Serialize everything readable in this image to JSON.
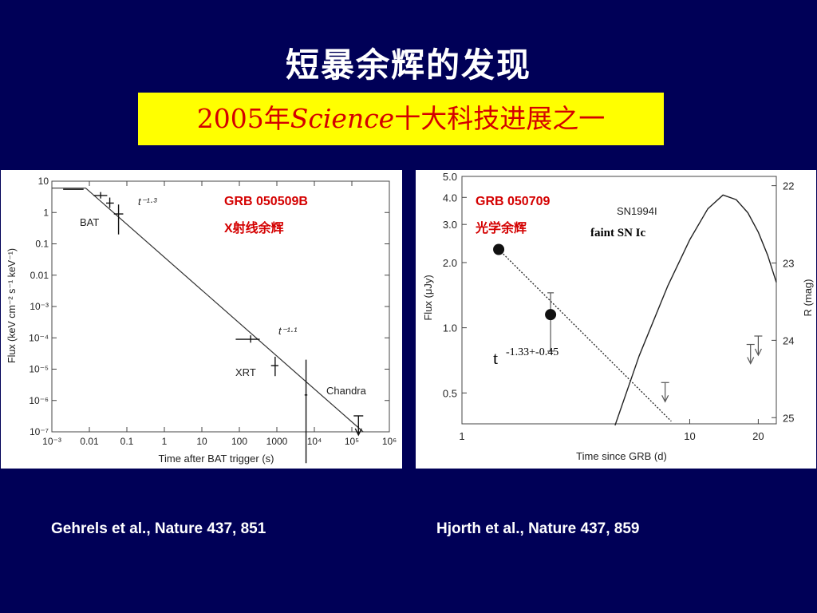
{
  "slide": {
    "title": "短暴余辉的发现",
    "subtitle_year": "2005年",
    "subtitle_journal": "Science",
    "subtitle_rest": "十大科技进展之一",
    "citation_left": "Gehrels et al., Nature 437, 851",
    "citation_right": "Hjorth et al., Nature 437, 859"
  },
  "colors": {
    "background": "#000057",
    "highlight": "#ffff00",
    "annotation_red": "#d40000"
  },
  "chart_data": [
    {
      "type": "line",
      "scale": "log-log",
      "xlabel": "Time after BAT trigger (s)",
      "ylabel": "Flux (keV cm⁻² s⁻¹ keV⁻¹)",
      "xlim": [
        0.001,
        1000000
      ],
      "ylim": [
        1e-07,
        10
      ],
      "x_ticks": [
        "10⁻³",
        "0.01",
        "0.1",
        "1",
        "10",
        "100",
        "1000",
        "10⁴",
        "10⁵",
        "10⁶"
      ],
      "y_ticks": [
        "10",
        "1",
        "0.1",
        "0.01",
        "10⁻³",
        "10⁻⁴",
        "10⁻⁵",
        "10⁻⁶",
        "10⁻⁷"
      ],
      "annotation_grb": "GRB 050509B",
      "annotation_xray": "X射线余辉",
      "labels": {
        "bat": "BAT",
        "xrt": "XRT",
        "chandra": "Chandra",
        "slope1": "t⁻¹·³",
        "slope2": "t⁻¹·¹"
      },
      "data_points": [
        {
          "x": 0.0035,
          "y": 5.5,
          "x_err": [
            0.002,
            0.007
          ],
          "y_err": [
            5.5,
            5.5
          ]
        },
        {
          "x": 0.02,
          "y": 3.5,
          "x_err": [
            0.013,
            0.03
          ],
          "y_err": [
            2.8,
            4.5
          ]
        },
        {
          "x": 0.035,
          "y": 2.0,
          "x_err": [
            0.028,
            0.045
          ],
          "y_err": [
            1.4,
            3.0
          ]
        },
        {
          "x": 0.06,
          "y": 0.9,
          "x_err": [
            0.045,
            0.08
          ],
          "y_err": [
            0.2,
            1.8
          ]
        },
        {
          "x": 200,
          "y": 9e-05,
          "x_err": [
            80,
            350
          ],
          "y_err": [
            7e-05,
            0.00012
          ]
        },
        {
          "x": 900,
          "y": 1.3e-05,
          "x_err": [
            700,
            1100
          ],
          "y_err": [
            6e-06,
            2.5e-05
          ]
        },
        {
          "x": 6000,
          "y": 1.5e-06,
          "x_err": [
            5500,
            6500
          ],
          "y_err": [
            1e-08,
            2e-05
          ]
        }
      ],
      "model_line": {
        "x": [
          0.001,
          0.008,
          200000
        ],
        "y": [
          6,
          6,
          1e-07
        ]
      },
      "upper_limit": {
        "x": 150000,
        "y": 1.6e-07
      }
    },
    {
      "type": "line",
      "scale": "log-log",
      "xlabel": "Time since GRB (d)",
      "ylabel": "Flux (μJy)",
      "ylabel_right": "R (mag)",
      "xlim": [
        1,
        24
      ],
      "ylim": [
        0.36,
        5.0
      ],
      "x_ticks": [
        "1",
        "10",
        "20"
      ],
      "y_ticks": [
        "5.0",
        "4.0",
        "3.0",
        "2.0",
        "1.0",
        "0.5"
      ],
      "y_ticks_right": [
        "22",
        "23",
        "24",
        "25"
      ],
      "annotation_grb": "GRB 050709",
      "annotation_optical": "光学余辉",
      "annotation_sn": "faint SN Ic",
      "annotation_power": "t",
      "annotation_power_exp": "-1.33+-0.45",
      "sn_label": "SN1994I",
      "data_points": [
        {
          "x": 1.45,
          "y": 2.3
        },
        {
          "x": 2.45,
          "y": 1.15,
          "y_err": [
            0.78,
            1.45
          ]
        }
      ],
      "upper_limits": [
        {
          "x": 7.8,
          "y": 0.5
        },
        {
          "x": 18.5,
          "y": 0.75
        },
        {
          "x": 20.0,
          "y": 0.82
        }
      ],
      "power_law_line": {
        "x": [
          1.45,
          8.3
        ],
        "y": [
          2.3,
          0.37
        ]
      },
      "sn_curve": {
        "x": [
          4.7,
          6.0,
          8.0,
          10.0,
          12.0,
          14.0,
          16.0,
          18.0,
          20.0,
          22.0,
          24.0
        ],
        "mag": [
          25.1,
          24.2,
          23.3,
          22.7,
          22.3,
          22.12,
          22.18,
          22.35,
          22.6,
          22.9,
          23.25
        ]
      }
    }
  ]
}
